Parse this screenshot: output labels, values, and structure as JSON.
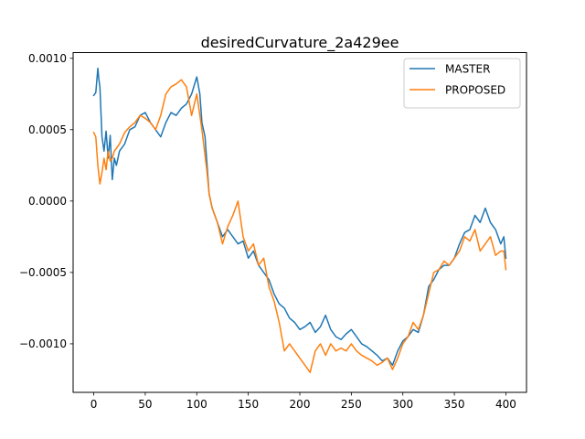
{
  "chart_data": {
    "type": "line",
    "title": "desiredCurvature_2a429ee",
    "xlabel": "",
    "ylabel": "",
    "xlim": [
      -20,
      420
    ],
    "ylim": [
      -0.00134,
      0.00104
    ],
    "x_ticks": [
      0,
      50,
      100,
      150,
      200,
      250,
      300,
      350,
      400
    ],
    "x_tick_labels": [
      "0",
      "50",
      "100",
      "150",
      "200",
      "250",
      "300",
      "350",
      "400"
    ],
    "y_ticks": [
      0.001,
      0.0005,
      0.0,
      -0.0005,
      -0.001
    ],
    "y_tick_labels": [
      "0.0010",
      "0.0005",
      "0.0000",
      "−0.0005",
      "−0.0010"
    ],
    "grid": false,
    "legend_position": "top-right",
    "series": [
      {
        "name": "MASTER",
        "color": "#1f77b4",
        "x": [
          0,
          2,
          4,
          5,
          6,
          8,
          10,
          12,
          14,
          16,
          18,
          20,
          22,
          25,
          30,
          35,
          40,
          45,
          50,
          55,
          60,
          65,
          70,
          75,
          80,
          85,
          90,
          95,
          100,
          103,
          105,
          108,
          110,
          112,
          115,
          120,
          125,
          130,
          135,
          140,
          145,
          150,
          155,
          160,
          165,
          170,
          175,
          180,
          185,
          190,
          195,
          200,
          205,
          210,
          215,
          220,
          225,
          230,
          235,
          240,
          245,
          250,
          255,
          260,
          265,
          270,
          275,
          280,
          285,
          290,
          295,
          300,
          305,
          310,
          315,
          320,
          325,
          330,
          335,
          340,
          345,
          350,
          355,
          360,
          365,
          370,
          375,
          380,
          385,
          390,
          395,
          398,
          400
        ],
        "values": [
          0.00074,
          0.00076,
          0.00093,
          0.00085,
          0.0008,
          0.00045,
          0.00035,
          0.00049,
          0.0003,
          0.00046,
          0.00015,
          0.0003,
          0.00025,
          0.00035,
          0.0004,
          0.0005,
          0.00052,
          0.0006,
          0.00062,
          0.00055,
          0.0005,
          0.00045,
          0.00055,
          0.00062,
          0.0006,
          0.00065,
          0.00068,
          0.00075,
          0.00087,
          0.00075,
          0.00055,
          0.00045,
          0.00025,
          5e-05,
          -5e-05,
          -0.00015,
          -0.00025,
          -0.0002,
          -0.00025,
          -0.0003,
          -0.00028,
          -0.0004,
          -0.00035,
          -0.00045,
          -0.0005,
          -0.00055,
          -0.00065,
          -0.00072,
          -0.00075,
          -0.00082,
          -0.00085,
          -0.0009,
          -0.00088,
          -0.00085,
          -0.00092,
          -0.00088,
          -0.0008,
          -0.0009,
          -0.00095,
          -0.00097,
          -0.00093,
          -0.0009,
          -0.00095,
          -0.001,
          -0.00102,
          -0.00105,
          -0.00108,
          -0.00112,
          -0.0011,
          -0.00115,
          -0.00105,
          -0.00098,
          -0.00095,
          -0.0009,
          -0.00092,
          -0.0008,
          -0.0006,
          -0.00055,
          -0.00048,
          -0.00045,
          -0.00045,
          -0.0004,
          -0.0003,
          -0.00022,
          -0.0002,
          -0.0001,
          -0.00015,
          -5e-05,
          -0.00015,
          -0.0002,
          -0.0003,
          -0.00025,
          -0.0004
        ]
      },
      {
        "name": "PROPOSED",
        "color": "#ff7f0e",
        "x": [
          0,
          2,
          4,
          6,
          8,
          10,
          12,
          14,
          16,
          18,
          20,
          25,
          30,
          35,
          40,
          45,
          50,
          55,
          60,
          65,
          70,
          75,
          80,
          85,
          90,
          95,
          100,
          105,
          110,
          112,
          115,
          120,
          125,
          130,
          135,
          140,
          145,
          150,
          155,
          160,
          165,
          170,
          175,
          180,
          185,
          190,
          195,
          200,
          205,
          210,
          215,
          220,
          225,
          230,
          235,
          240,
          245,
          250,
          255,
          260,
          265,
          270,
          275,
          280,
          285,
          290,
          295,
          300,
          305,
          310,
          315,
          320,
          325,
          330,
          335,
          340,
          345,
          350,
          355,
          360,
          365,
          370,
          375,
          380,
          385,
          390,
          395,
          398,
          400
        ],
        "values": [
          0.00048,
          0.00045,
          0.00025,
          0.00012,
          0.0002,
          0.0003,
          0.00022,
          0.00035,
          0.00028,
          0.0003,
          0.00035,
          0.0004,
          0.00048,
          0.00052,
          0.00055,
          0.0006,
          0.00058,
          0.00055,
          0.0005,
          0.0006,
          0.00075,
          0.0008,
          0.00082,
          0.00085,
          0.0008,
          0.0006,
          0.00075,
          0.0005,
          0.0002,
          5e-05,
          -5e-05,
          -0.00015,
          -0.0003,
          -0.00018,
          -0.0001,
          0.0,
          -0.00025,
          -0.00035,
          -0.0003,
          -0.00045,
          -0.0004,
          -0.0006,
          -0.0007,
          -0.00085,
          -0.00105,
          -0.001,
          -0.00105,
          -0.0011,
          -0.00115,
          -0.0012,
          -0.00105,
          -0.001,
          -0.00108,
          -0.001,
          -0.00105,
          -0.00103,
          -0.00105,
          -0.001,
          -0.00105,
          -0.00108,
          -0.0011,
          -0.00112,
          -0.00115,
          -0.00113,
          -0.0011,
          -0.00118,
          -0.0011,
          -0.001,
          -0.00095,
          -0.00085,
          -0.0009,
          -0.0008,
          -0.00065,
          -0.0005,
          -0.00048,
          -0.00042,
          -0.00045,
          -0.0004,
          -0.00035,
          -0.00025,
          -0.00028,
          -0.0002,
          -0.00035,
          -0.0003,
          -0.00025,
          -0.00038,
          -0.00035,
          -0.00035,
          -0.00048
        ]
      }
    ]
  }
}
